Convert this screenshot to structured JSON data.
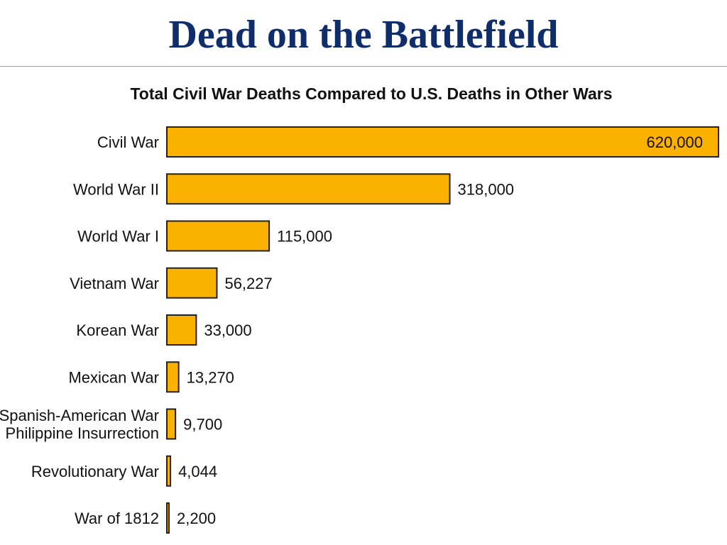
{
  "slide": {
    "title": "Dead on the Battlefield"
  },
  "colors": {
    "title": "#0f2d6b",
    "bar_fill": "#fbb100",
    "bar_stroke": "#222222"
  },
  "chart_data": {
    "type": "bar",
    "orientation": "horizontal",
    "title": "Total Civil War Deaths Compared to U.S. Deaths in Other Wars",
    "xlabel": "",
    "ylabel": "",
    "grid": false,
    "legend": "none",
    "xlim": [
      0,
      620000
    ],
    "categories": [
      [
        "Civil War"
      ],
      [
        "World War II"
      ],
      [
        "World War I"
      ],
      [
        "Vietnam War"
      ],
      [
        "Korean War"
      ],
      [
        "Mexican War"
      ],
      [
        "Spanish-American War",
        "and Philippine Insurrection"
      ],
      [
        "Revolutionary War"
      ],
      [
        "War of 1812"
      ]
    ],
    "values": [
      620000,
      318000,
      115000,
      56227,
      33000,
      13270,
      9700,
      4044,
      2200
    ],
    "value_labels": [
      "620,000",
      "318,000",
      "115,000",
      "56,227",
      "33,000",
      "13,270",
      "9,700",
      "4,044",
      "2,200"
    ]
  }
}
